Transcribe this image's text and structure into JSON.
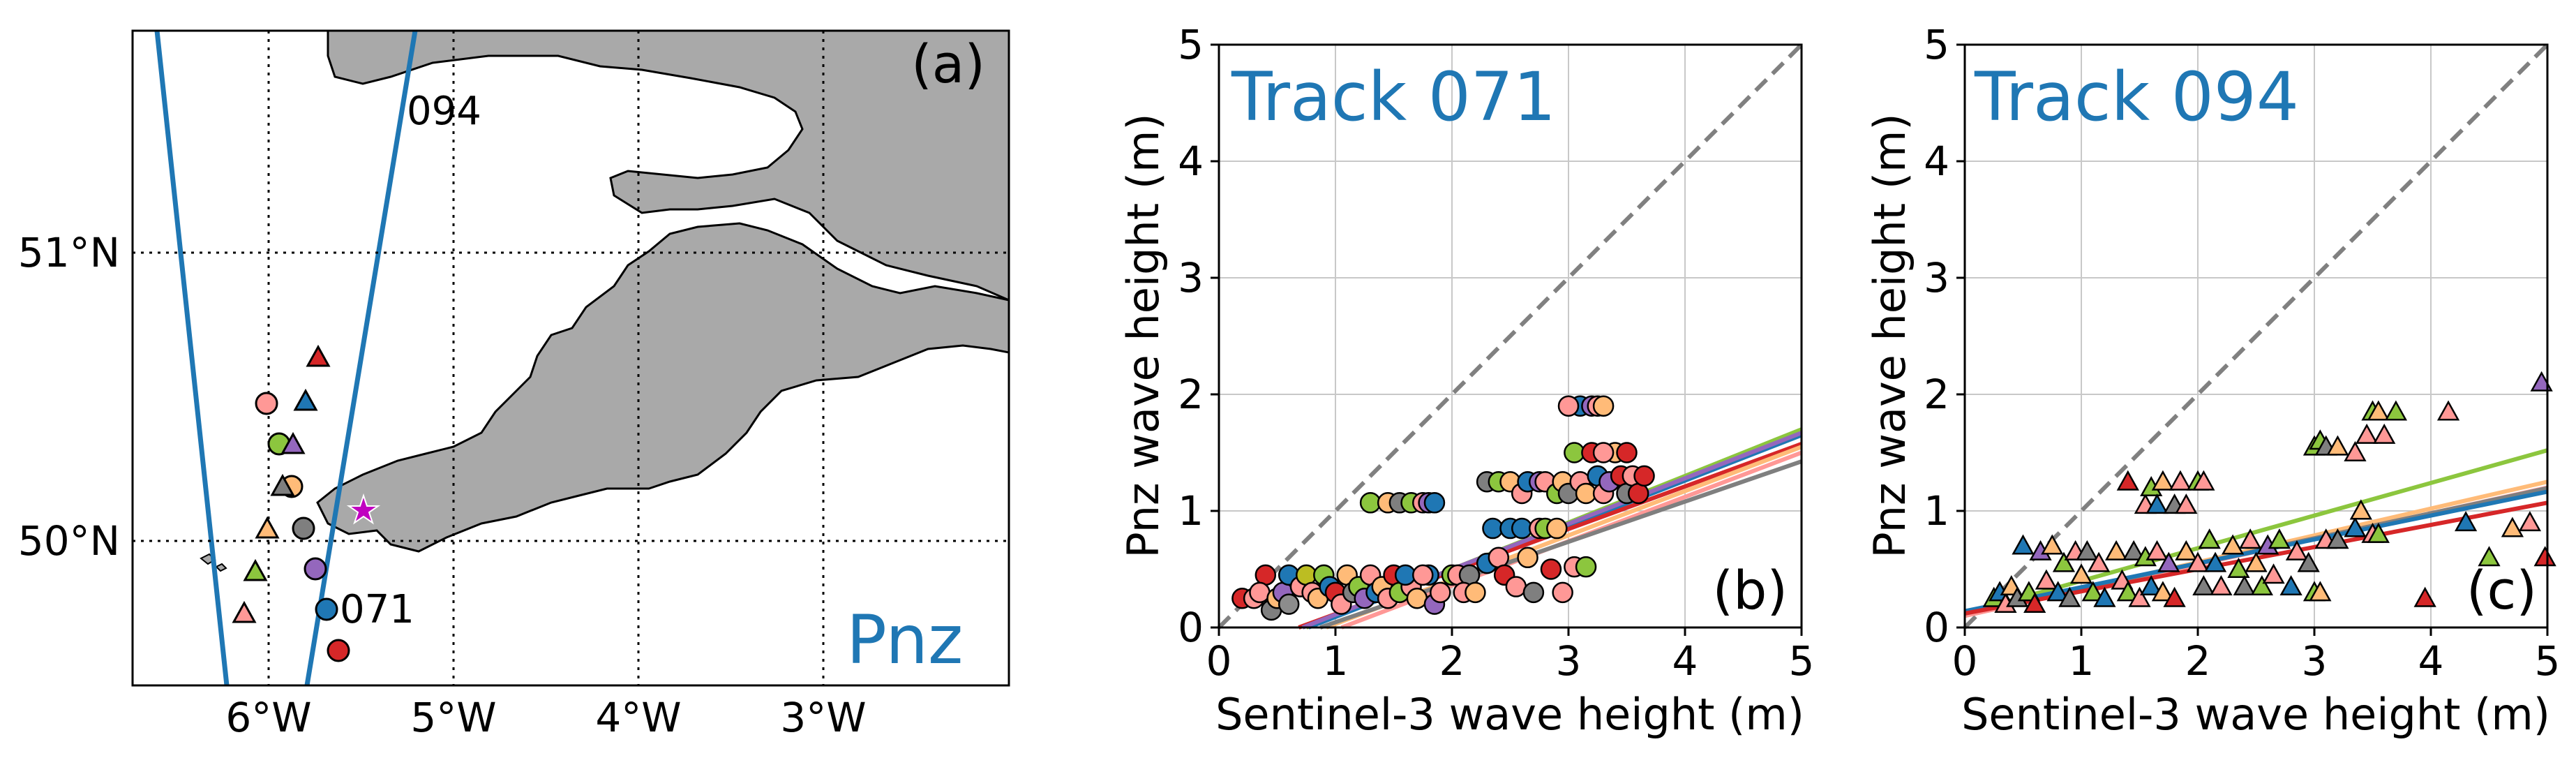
{
  "figure": {
    "panel_labels": [
      "(a)",
      "(b)",
      "(c)"
    ]
  },
  "map": {
    "lon_ticks": [
      "6°W",
      "5°W",
      "4°W",
      "3°W"
    ],
    "lat_ticks": [
      "51°N",
      "50°N"
    ],
    "track_labels": [
      "094",
      "071"
    ],
    "station_label": "Pnz",
    "colors": {
      "land": "#a9a9a9",
      "sea": "#ffffff",
      "track": "#1f77b4",
      "station": "#c000c0"
    }
  },
  "chart_data": [
    {
      "type": "scatter",
      "title": "Track 071",
      "xlabel": "Sentinel-3 wave height (m)",
      "ylabel": "Pnz wave height (m)",
      "xlim": [
        0,
        5
      ],
      "ylim": [
        0,
        5
      ],
      "xticks": [
        "0",
        "1",
        "2",
        "3",
        "4",
        "5"
      ],
      "yticks": [
        "0",
        "1",
        "2",
        "3",
        "4",
        "5"
      ],
      "marker": "circle",
      "grid": true,
      "legend": "none",
      "points": [
        [
          0.2,
          0.25,
          "#d62728"
        ],
        [
          0.3,
          0.25,
          "#ff9896"
        ],
        [
          0.4,
          0.45,
          "#d62728"
        ],
        [
          0.35,
          0.3,
          "#ff9896"
        ],
        [
          0.45,
          0.15,
          "#7f7f7f"
        ],
        [
          0.5,
          0.25,
          "#ffbb78"
        ],
        [
          0.55,
          0.3,
          "#9467bd"
        ],
        [
          0.6,
          0.45,
          "#1f77b4"
        ],
        [
          0.6,
          0.2,
          "#8c8c8c"
        ],
        [
          0.7,
          0.35,
          "#ff9896"
        ],
        [
          0.75,
          0.45,
          "#bcbd22"
        ],
        [
          0.8,
          0.3,
          "#ff9896"
        ],
        [
          0.85,
          0.25,
          "#ffbb78"
        ],
        [
          0.9,
          0.45,
          "#8cc63e"
        ],
        [
          0.95,
          0.35,
          "#1f77b4"
        ],
        [
          1.0,
          0.3,
          "#d62728"
        ],
        [
          1.05,
          0.2,
          "#ff9896"
        ],
        [
          1.1,
          0.45,
          "#ffbb78"
        ],
        [
          1.15,
          0.3,
          "#7f7f7f"
        ],
        [
          1.2,
          0.35,
          "#8cc63e"
        ],
        [
          1.25,
          0.25,
          "#9467bd"
        ],
        [
          1.3,
          0.45,
          "#ff9896"
        ],
        [
          1.35,
          0.3,
          "#1f77b4"
        ],
        [
          1.4,
          0.35,
          "#ffbb78"
        ],
        [
          1.45,
          0.25,
          "#ff9896"
        ],
        [
          1.5,
          0.45,
          "#d62728"
        ],
        [
          1.55,
          0.3,
          "#8cc63e"
        ],
        [
          1.65,
          0.35,
          "#ff9896"
        ],
        [
          1.7,
          0.25,
          "#ffbb78"
        ],
        [
          1.8,
          0.45,
          "#1f77b4"
        ],
        [
          1.85,
          0.2,
          "#9467bd"
        ],
        [
          1.9,
          0.3,
          "#ff9896"
        ],
        [
          1.3,
          1.07,
          "#8cc63e"
        ],
        [
          1.45,
          1.07,
          "#ffbb78"
        ],
        [
          1.55,
          1.07,
          "#7f7f7f"
        ],
        [
          1.65,
          1.07,
          "#8cc63e"
        ],
        [
          1.75,
          1.07,
          "#ff9896"
        ],
        [
          1.8,
          1.07,
          "#9467bd"
        ],
        [
          1.85,
          1.07,
          "#1f77b4"
        ],
        [
          1.6,
          0.45,
          "#1f77b4"
        ],
        [
          1.75,
          0.45,
          "#ff9896"
        ],
        [
          2.0,
          0.45,
          "#8cc63e"
        ],
        [
          2.05,
          0.45,
          "#ff9896"
        ],
        [
          2.15,
          0.45,
          "#7f7f7f"
        ],
        [
          2.1,
          0.3,
          "#ff9896"
        ],
        [
          2.2,
          0.3,
          "#ffbb78"
        ],
        [
          2.3,
          0.55,
          "#1f77b4"
        ],
        [
          2.35,
          0.85,
          "#1f77b4"
        ],
        [
          2.4,
          0.6,
          "#ff9896"
        ],
        [
          2.45,
          0.45,
          "#d62728"
        ],
        [
          2.5,
          0.85,
          "#1f77b4"
        ],
        [
          2.55,
          0.35,
          "#ff9896"
        ],
        [
          2.6,
          0.85,
          "#1f77b4"
        ],
        [
          2.65,
          0.6,
          "#ffbb78"
        ],
        [
          2.7,
          0.3,
          "#7f7f7f"
        ],
        [
          2.75,
          0.85,
          "#ff9896"
        ],
        [
          2.8,
          0.85,
          "#8cc63e"
        ],
        [
          2.85,
          0.5,
          "#d62728"
        ],
        [
          2.9,
          0.85,
          "#ffbb78"
        ],
        [
          2.95,
          0.3,
          "#ff9896"
        ],
        [
          2.3,
          1.25,
          "#7f7f7f"
        ],
        [
          2.4,
          1.25,
          "#8cc63e"
        ],
        [
          2.5,
          1.25,
          "#ffbb78"
        ],
        [
          2.6,
          1.15,
          "#ff9896"
        ],
        [
          2.65,
          1.25,
          "#1f77b4"
        ],
        [
          2.75,
          1.25,
          "#9467bd"
        ],
        [
          2.8,
          1.25,
          "#ff9896"
        ],
        [
          2.9,
          1.15,
          "#8cc63e"
        ],
        [
          2.95,
          1.25,
          "#ffbb78"
        ],
        [
          3.0,
          1.15,
          "#7f7f7f"
        ],
        [
          3.05,
          1.5,
          "#8cc63e"
        ],
        [
          3.1,
          1.25,
          "#ff9896"
        ],
        [
          3.15,
          1.15,
          "#ffbb78"
        ],
        [
          3.2,
          1.5,
          "#d62728"
        ],
        [
          3.25,
          1.3,
          "#1f77b4"
        ],
        [
          3.3,
          1.15,
          "#ff9896"
        ],
        [
          3.35,
          1.25,
          "#9467bd"
        ],
        [
          3.4,
          1.5,
          "#ffbb78"
        ],
        [
          3.45,
          1.3,
          "#d62728"
        ],
        [
          3.5,
          1.15,
          "#7f7f7f"
        ],
        [
          3.55,
          1.3,
          "#ff9896"
        ],
        [
          3.6,
          1.15,
          "#d62728"
        ],
        [
          3.1,
          1.9,
          "#1f77b4"
        ],
        [
          3.2,
          1.9,
          "#9467bd"
        ],
        [
          3.25,
          1.9,
          "#ff9896"
        ],
        [
          3.3,
          1.9,
          "#ffbb78"
        ],
        [
          3.0,
          1.9,
          "#ff9896"
        ],
        [
          3.05,
          0.52,
          "#ff9896"
        ],
        [
          3.15,
          0.52,
          "#8cc63e"
        ],
        [
          3.3,
          1.5,
          "#ff9896"
        ],
        [
          3.5,
          1.5,
          "#d62728"
        ],
        [
          3.65,
          1.3,
          "#d62728"
        ]
      ],
      "fit_lines": [
        {
          "color": "#8cc63e",
          "intercept": -0.3,
          "slope": 0.4
        },
        {
          "color": "#1f77b4",
          "intercept": -0.3,
          "slope": 0.39
        },
        {
          "color": "#d62728",
          "intercept": -0.25,
          "slope": 0.365
        },
        {
          "color": "#ffbb78",
          "intercept": -0.35,
          "slope": 0.38
        },
        {
          "color": "#ff9896",
          "intercept": -0.4,
          "slope": 0.38
        },
        {
          "color": "#7f7f7f",
          "intercept": -0.3,
          "slope": 0.345
        },
        {
          "color": "#9467bd",
          "intercept": -0.28,
          "slope": 0.39
        }
      ],
      "one_to_one": true
    },
    {
      "type": "scatter",
      "title": "Track 094",
      "xlabel": "Sentinel-3 wave height (m)",
      "ylabel": "Pnz wave height (m)",
      "xlim": [
        0,
        5
      ],
      "ylim": [
        0,
        5
      ],
      "xticks": [
        "0",
        "1",
        "2",
        "3",
        "4",
        "5"
      ],
      "yticks": [
        "0",
        "1",
        "2",
        "3",
        "4",
        "5"
      ],
      "marker": "triangle",
      "grid": true,
      "legend": "none",
      "points": [
        [
          0.25,
          0.25,
          "#8cc63e"
        ],
        [
          0.3,
          0.3,
          "#1f77b4"
        ],
        [
          0.35,
          0.2,
          "#ff9896"
        ],
        [
          0.4,
          0.35,
          "#ffbb78"
        ],
        [
          0.45,
          0.25,
          "#7f7f7f"
        ],
        [
          0.5,
          0.7,
          "#1f77b4"
        ],
        [
          0.55,
          0.3,
          "#8cc63e"
        ],
        [
          0.6,
          0.2,
          "#d62728"
        ],
        [
          0.65,
          0.65,
          "#9467bd"
        ],
        [
          0.7,
          0.4,
          "#ff9896"
        ],
        [
          0.75,
          0.7,
          "#ffbb78"
        ],
        [
          0.8,
          0.3,
          "#1f77b4"
        ],
        [
          0.85,
          0.55,
          "#8cc63e"
        ],
        [
          0.9,
          0.25,
          "#7f7f7f"
        ],
        [
          0.95,
          0.65,
          "#ff9896"
        ],
        [
          1.0,
          0.45,
          "#ffbb78"
        ],
        [
          1.05,
          0.65,
          "#7f7f7f"
        ],
        [
          1.1,
          0.3,
          "#8cc63e"
        ],
        [
          1.15,
          0.55,
          "#ff9896"
        ],
        [
          1.2,
          0.25,
          "#1f77b4"
        ],
        [
          1.3,
          0.65,
          "#ffbb78"
        ],
        [
          1.35,
          0.4,
          "#ff9896"
        ],
        [
          1.4,
          0.3,
          "#8cc63e"
        ],
        [
          1.45,
          0.65,
          "#7f7f7f"
        ],
        [
          1.5,
          0.25,
          "#ff9896"
        ],
        [
          1.55,
          0.6,
          "#8cc63e"
        ],
        [
          1.6,
          0.35,
          "#1f77b4"
        ],
        [
          1.65,
          0.65,
          "#ff9896"
        ],
        [
          1.7,
          0.3,
          "#ffbb78"
        ],
        [
          1.75,
          0.55,
          "#9467bd"
        ],
        [
          1.8,
          0.25,
          "#d62728"
        ],
        [
          1.4,
          1.25,
          "#d62728"
        ],
        [
          1.55,
          1.05,
          "#ff9896"
        ],
        [
          1.6,
          1.2,
          "#8cc63e"
        ],
        [
          1.65,
          1.05,
          "#1f77b4"
        ],
        [
          1.7,
          1.25,
          "#ffbb78"
        ],
        [
          1.8,
          1.05,
          "#7f7f7f"
        ],
        [
          1.85,
          1.25,
          "#ff9896"
        ],
        [
          1.9,
          1.05,
          "#ff9896"
        ],
        [
          2.0,
          1.25,
          "#8cc63e"
        ],
        [
          2.05,
          1.25,
          "#ff9896"
        ],
        [
          1.9,
          0.65,
          "#ffbb78"
        ],
        [
          2.0,
          0.55,
          "#ff9896"
        ],
        [
          2.05,
          0.35,
          "#7f7f7f"
        ],
        [
          2.1,
          0.75,
          "#8cc63e"
        ],
        [
          2.15,
          0.55,
          "#1f77b4"
        ],
        [
          2.2,
          0.35,
          "#ff9896"
        ],
        [
          2.3,
          0.7,
          "#ffbb78"
        ],
        [
          2.35,
          0.5,
          "#8cc63e"
        ],
        [
          2.4,
          0.35,
          "#7f7f7f"
        ],
        [
          2.45,
          0.75,
          "#ff9896"
        ],
        [
          2.5,
          0.55,
          "#ffbb78"
        ],
        [
          2.55,
          0.35,
          "#8cc63e"
        ],
        [
          2.6,
          0.7,
          "#9467bd"
        ],
        [
          2.65,
          0.45,
          "#ff9896"
        ],
        [
          2.7,
          0.75,
          "#8cc63e"
        ],
        [
          2.8,
          0.35,
          "#1f77b4"
        ],
        [
          2.85,
          0.65,
          "#ff9896"
        ],
        [
          2.95,
          0.55,
          "#7f7f7f"
        ],
        [
          3.0,
          0.3,
          "#8cc63e"
        ],
        [
          3.05,
          0.3,
          "#ffbb78"
        ],
        [
          3.1,
          0.75,
          "#ff9896"
        ],
        [
          3.2,
          0.75,
          "#7f7f7f"
        ],
        [
          3.35,
          0.85,
          "#1f77b4"
        ],
        [
          3.4,
          1.0,
          "#ffbb78"
        ],
        [
          3.5,
          0.8,
          "#ff9896"
        ],
        [
          3.55,
          0.8,
          "#8cc63e"
        ],
        [
          3.0,
          1.55,
          "#8cc63e"
        ],
        [
          3.05,
          1.6,
          "#8cc63e"
        ],
        [
          3.1,
          1.55,
          "#7f7f7f"
        ],
        [
          3.2,
          1.55,
          "#ffbb78"
        ],
        [
          3.35,
          1.5,
          "#ff9896"
        ],
        [
          3.45,
          1.65,
          "#ff9896"
        ],
        [
          3.5,
          1.85,
          "#8cc63e"
        ],
        [
          3.55,
          1.85,
          "#ffbb78"
        ],
        [
          3.6,
          1.65,
          "#ff9896"
        ],
        [
          3.7,
          1.85,
          "#8cc63e"
        ],
        [
          3.95,
          0.25,
          "#d62728"
        ],
        [
          4.15,
          1.85,
          "#ff9896"
        ],
        [
          4.3,
          0.9,
          "#1f77b4"
        ],
        [
          4.5,
          0.6,
          "#8cc63e"
        ],
        [
          4.7,
          0.85,
          "#ffbb78"
        ],
        [
          4.85,
          0.9,
          "#ff9896"
        ],
        [
          4.95,
          2.1,
          "#9467bd"
        ],
        [
          4.98,
          0.6,
          "#d62728"
        ]
      ],
      "fit_lines": [
        {
          "color": "#8cc63e",
          "intercept": 0.12,
          "slope": 0.28
        },
        {
          "color": "#ffbb78",
          "intercept": 0.1,
          "slope": 0.23
        },
        {
          "color": "#ff9896",
          "intercept": 0.1,
          "slope": 0.22
        },
        {
          "color": "#7f7f7f",
          "intercept": 0.12,
          "slope": 0.215
        },
        {
          "color": "#1f77b4",
          "intercept": 0.14,
          "slope": 0.205
        },
        {
          "color": "#d62728",
          "intercept": 0.12,
          "slope": 0.19
        }
      ],
      "one_to_one": true
    }
  ]
}
